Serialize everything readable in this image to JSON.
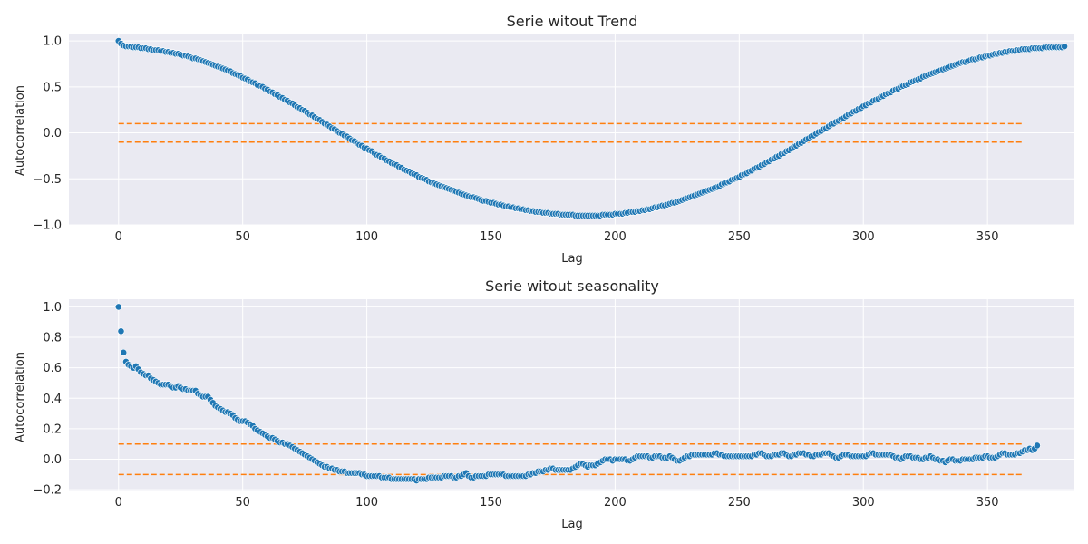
{
  "figure": {
    "colors": {
      "points": "#1f77b4",
      "reference_lines": "#ff7f0e",
      "plot_background": "#eaeaf2",
      "grid": "#ffffff"
    }
  },
  "chart_data": [
    {
      "type": "scatter",
      "title": "Serie witout Trend",
      "xlabel": "Lag",
      "ylabel": "Autocorrelation",
      "xlim": [
        -20,
        385
      ],
      "ylim": [
        -1.0,
        1.07
      ],
      "xticks": [
        0,
        50,
        100,
        150,
        200,
        250,
        300,
        350
      ],
      "yticks": [
        -1.0,
        -0.5,
        0.0,
        0.5,
        1.0
      ],
      "ytick_labels": [
        "−1.0",
        "−0.5",
        "0.0",
        "0.5",
        "1.0"
      ],
      "grid": true,
      "legend": "none",
      "reference_lines": [
        {
          "y": 0.1,
          "x_range": [
            0,
            364
          ],
          "style": "dashed",
          "color": "#ff7f0e"
        },
        {
          "y": -0.1,
          "x_range": [
            0,
            364
          ],
          "style": "dashed",
          "color": "#ff7f0e"
        }
      ],
      "series": [
        {
          "x_start": 0,
          "x_step": 1,
          "values": [
            1.0,
            0.97,
            0.95,
            0.94,
            0.94,
            0.94,
            0.93,
            0.93,
            0.93,
            0.92,
            0.92,
            0.92,
            0.91,
            0.91,
            0.9,
            0.9,
            0.9,
            0.89,
            0.89,
            0.88,
            0.88,
            0.87,
            0.87,
            0.86,
            0.86,
            0.85,
            0.84,
            0.84,
            0.83,
            0.82,
            0.81,
            0.81,
            0.8,
            0.79,
            0.78,
            0.77,
            0.76,
            0.75,
            0.74,
            0.73,
            0.72,
            0.71,
            0.7,
            0.69,
            0.68,
            0.67,
            0.65,
            0.64,
            0.63,
            0.62,
            0.6,
            0.59,
            0.58,
            0.56,
            0.55,
            0.54,
            0.52,
            0.51,
            0.5,
            0.48,
            0.47,
            0.45,
            0.44,
            0.42,
            0.41,
            0.39,
            0.38,
            0.36,
            0.35,
            0.33,
            0.32,
            0.3,
            0.28,
            0.27,
            0.25,
            0.24,
            0.22,
            0.2,
            0.19,
            0.17,
            0.15,
            0.14,
            0.12,
            0.1,
            0.09,
            0.07,
            0.05,
            0.04,
            0.02,
            0.0,
            -0.01,
            -0.03,
            -0.04,
            -0.06,
            -0.08,
            -0.09,
            -0.11,
            -0.13,
            -0.14,
            -0.16,
            -0.17,
            -0.19,
            -0.2,
            -0.22,
            -0.24,
            -0.25,
            -0.27,
            -0.28,
            -0.3,
            -0.31,
            -0.33,
            -0.34,
            -0.35,
            -0.37,
            -0.38,
            -0.4,
            -0.41,
            -0.42,
            -0.44,
            -0.45,
            -0.46,
            -0.48,
            -0.49,
            -0.5,
            -0.51,
            -0.53,
            -0.54,
            -0.55,
            -0.56,
            -0.57,
            -0.58,
            -0.59,
            -0.6,
            -0.61,
            -0.62,
            -0.63,
            -0.64,
            -0.65,
            -0.66,
            -0.67,
            -0.68,
            -0.69,
            -0.7,
            -0.7,
            -0.71,
            -0.72,
            -0.73,
            -0.74,
            -0.74,
            -0.75,
            -0.76,
            -0.76,
            -0.77,
            -0.78,
            -0.78,
            -0.79,
            -0.8,
            -0.8,
            -0.81,
            -0.81,
            -0.82,
            -0.82,
            -0.83,
            -0.83,
            -0.84,
            -0.84,
            -0.85,
            -0.85,
            -0.86,
            -0.86,
            -0.86,
            -0.87,
            -0.87,
            -0.87,
            -0.88,
            -0.88,
            -0.88,
            -0.88,
            -0.89,
            -0.89,
            -0.89,
            -0.89,
            -0.89,
            -0.89,
            -0.9,
            -0.9,
            -0.9,
            -0.9,
            -0.9,
            -0.9,
            -0.9,
            -0.9,
            -0.9,
            -0.9,
            -0.9,
            -0.89,
            -0.89,
            -0.89,
            -0.89,
            -0.89,
            -0.88,
            -0.88,
            -0.88,
            -0.88,
            -0.87,
            -0.87,
            -0.86,
            -0.86,
            -0.86,
            -0.85,
            -0.85,
            -0.84,
            -0.84,
            -0.83,
            -0.83,
            -0.82,
            -0.81,
            -0.81,
            -0.8,
            -0.79,
            -0.79,
            -0.78,
            -0.77,
            -0.76,
            -0.76,
            -0.75,
            -0.74,
            -0.73,
            -0.72,
            -0.71,
            -0.7,
            -0.69,
            -0.68,
            -0.67,
            -0.66,
            -0.65,
            -0.64,
            -0.63,
            -0.62,
            -0.61,
            -0.6,
            -0.59,
            -0.58,
            -0.56,
            -0.55,
            -0.54,
            -0.53,
            -0.51,
            -0.5,
            -0.49,
            -0.48,
            -0.46,
            -0.45,
            -0.44,
            -0.42,
            -0.41,
            -0.39,
            -0.38,
            -0.37,
            -0.35,
            -0.34,
            -0.32,
            -0.31,
            -0.29,
            -0.28,
            -0.26,
            -0.25,
            -0.23,
            -0.22,
            -0.2,
            -0.19,
            -0.17,
            -0.15,
            -0.14,
            -0.12,
            -0.11,
            -0.09,
            -0.07,
            -0.06,
            -0.04,
            -0.03,
            -0.01,
            0.01,
            0.02,
            0.04,
            0.05,
            0.07,
            0.09,
            0.1,
            0.12,
            0.13,
            0.15,
            0.16,
            0.18,
            0.2,
            0.21,
            0.23,
            0.24,
            0.26,
            0.27,
            0.29,
            0.3,
            0.32,
            0.33,
            0.35,
            0.36,
            0.37,
            0.39,
            0.4,
            0.42,
            0.43,
            0.44,
            0.46,
            0.47,
            0.48,
            0.5,
            0.51,
            0.52,
            0.53,
            0.55,
            0.56,
            0.57,
            0.58,
            0.59,
            0.61,
            0.62,
            0.63,
            0.64,
            0.65,
            0.66,
            0.67,
            0.68,
            0.69,
            0.7,
            0.71,
            0.72,
            0.73,
            0.74,
            0.75,
            0.76,
            0.77,
            0.77,
            0.78,
            0.79,
            0.8,
            0.8,
            0.81,
            0.82,
            0.82,
            0.83,
            0.84,
            0.84,
            0.85,
            0.86,
            0.86,
            0.87,
            0.87,
            0.88,
            0.88,
            0.89,
            0.89,
            0.89,
            0.9,
            0.9,
            0.91,
            0.91,
            0.91,
            0.91,
            0.92,
            0.92,
            0.92,
            0.92,
            0.92,
            0.93,
            0.93,
            0.93,
            0.93,
            0.93,
            0.93,
            0.93,
            0.93,
            0.94
          ]
        }
      ]
    },
    {
      "type": "scatter",
      "title": "Serie witout seasonality",
      "xlabel": "Lag",
      "ylabel": "Autocorrelation",
      "xlim": [
        -20,
        385
      ],
      "ylim": [
        -0.205,
        1.05
      ],
      "xticks": [
        0,
        50,
        100,
        150,
        200,
        250,
        300,
        350
      ],
      "yticks": [
        -0.2,
        0.0,
        0.2,
        0.4,
        0.6,
        0.8,
        1.0
      ],
      "ytick_labels": [
        "−0.2",
        "0.0",
        "0.2",
        "0.4",
        "0.6",
        "0.8",
        "1.0"
      ],
      "grid": true,
      "legend": "none",
      "reference_lines": [
        {
          "y": 0.1,
          "x_range": [
            0,
            364
          ],
          "style": "dashed",
          "color": "#ff7f0e"
        },
        {
          "y": -0.1,
          "x_range": [
            0,
            364
          ],
          "style": "dashed",
          "color": "#ff7f0e"
        }
      ],
      "series": [
        {
          "x_start": 0,
          "x_step": 1,
          "values": [
            1.0,
            0.84,
            0.7,
            0.64,
            0.62,
            0.61,
            0.6,
            0.61,
            0.59,
            0.57,
            0.56,
            0.55,
            0.55,
            0.53,
            0.52,
            0.51,
            0.5,
            0.49,
            0.49,
            0.49,
            0.49,
            0.48,
            0.47,
            0.47,
            0.48,
            0.47,
            0.46,
            0.46,
            0.45,
            0.45,
            0.45,
            0.45,
            0.43,
            0.42,
            0.41,
            0.41,
            0.41,
            0.39,
            0.37,
            0.35,
            0.34,
            0.33,
            0.32,
            0.31,
            0.31,
            0.3,
            0.29,
            0.27,
            0.26,
            0.25,
            0.25,
            0.25,
            0.24,
            0.23,
            0.22,
            0.2,
            0.19,
            0.18,
            0.17,
            0.16,
            0.15,
            0.14,
            0.14,
            0.13,
            0.12,
            0.11,
            0.11,
            0.1,
            0.1,
            0.09,
            0.08,
            0.07,
            0.06,
            0.05,
            0.04,
            0.03,
            0.02,
            0.01,
            0.0,
            -0.01,
            -0.02,
            -0.03,
            -0.04,
            -0.05,
            -0.05,
            -0.06,
            -0.06,
            -0.07,
            -0.07,
            -0.08,
            -0.08,
            -0.08,
            -0.09,
            -0.09,
            -0.09,
            -0.09,
            -0.09,
            -0.09,
            -0.1,
            -0.1,
            -0.11,
            -0.11,
            -0.11,
            -0.11,
            -0.11,
            -0.11,
            -0.12,
            -0.12,
            -0.12,
            -0.12,
            -0.13,
            -0.13,
            -0.13,
            -0.13,
            -0.13,
            -0.13,
            -0.13,
            -0.13,
            -0.13,
            -0.13,
            -0.14,
            -0.13,
            -0.13,
            -0.13,
            -0.13,
            -0.12,
            -0.12,
            -0.12,
            -0.12,
            -0.12,
            -0.12,
            -0.11,
            -0.11,
            -0.11,
            -0.11,
            -0.12,
            -0.12,
            -0.11,
            -0.11,
            -0.1,
            -0.09,
            -0.11,
            -0.12,
            -0.12,
            -0.11,
            -0.11,
            -0.11,
            -0.11,
            -0.11,
            -0.1,
            -0.1,
            -0.1,
            -0.1,
            -0.1,
            -0.1,
            -0.1,
            -0.11,
            -0.11,
            -0.11,
            -0.11,
            -0.11,
            -0.11,
            -0.11,
            -0.11,
            -0.11,
            -0.1,
            -0.1,
            -0.09,
            -0.09,
            -0.08,
            -0.08,
            -0.08,
            -0.07,
            -0.07,
            -0.06,
            -0.06,
            -0.07,
            -0.07,
            -0.07,
            -0.07,
            -0.07,
            -0.07,
            -0.07,
            -0.06,
            -0.05,
            -0.04,
            -0.03,
            -0.03,
            -0.04,
            -0.05,
            -0.04,
            -0.04,
            -0.04,
            -0.03,
            -0.02,
            -0.01,
            0.0,
            0.0,
            0.0,
            -0.01,
            0.0,
            0.0,
            0.0,
            0.0,
            0.0,
            -0.01,
            -0.01,
            0.0,
            0.01,
            0.02,
            0.02,
            0.02,
            0.02,
            0.02,
            0.01,
            0.01,
            0.02,
            0.02,
            0.02,
            0.01,
            0.01,
            0.01,
            0.02,
            0.01,
            0.0,
            -0.01,
            -0.01,
            0.0,
            0.01,
            0.02,
            0.02,
            0.03,
            0.03,
            0.03,
            0.03,
            0.03,
            0.03,
            0.03,
            0.03,
            0.03,
            0.04,
            0.04,
            0.03,
            0.03,
            0.02,
            0.02,
            0.02,
            0.02,
            0.02,
            0.02,
            0.02,
            0.02,
            0.02,
            0.02,
            0.02,
            0.02,
            0.03,
            0.03,
            0.04,
            0.04,
            0.03,
            0.02,
            0.02,
            0.02,
            0.03,
            0.03,
            0.03,
            0.04,
            0.04,
            0.03,
            0.02,
            0.02,
            0.03,
            0.03,
            0.04,
            0.04,
            0.04,
            0.03,
            0.03,
            0.02,
            0.02,
            0.03,
            0.03,
            0.03,
            0.04,
            0.04,
            0.04,
            0.03,
            0.02,
            0.01,
            0.01,
            0.02,
            0.03,
            0.03,
            0.03,
            0.02,
            0.02,
            0.02,
            0.02,
            0.02,
            0.02,
            0.02,
            0.03,
            0.04,
            0.04,
            0.03,
            0.03,
            0.03,
            0.03,
            0.03,
            0.03,
            0.03,
            0.02,
            0.01,
            0.01,
            0.0,
            0.01,
            0.02,
            0.02,
            0.02,
            0.01,
            0.01,
            0.01,
            0.0,
            0.0,
            0.01,
            0.01,
            0.02,
            0.01,
            0.0,
            0.0,
            -0.01,
            -0.01,
            -0.02,
            -0.01,
            0.0,
            0.0,
            -0.01,
            -0.01,
            -0.01,
            0.0,
            0.0,
            0.0,
            0.0,
            0.0,
            0.01,
            0.01,
            0.01,
            0.01,
            0.02,
            0.02,
            0.01,
            0.01,
            0.01,
            0.02,
            0.03,
            0.04,
            0.04,
            0.03,
            0.03,
            0.03,
            0.03,
            0.04,
            0.04,
            0.05,
            0.06,
            0.06,
            0.07,
            0.06,
            0.07,
            0.09
          ]
        }
      ]
    }
  ]
}
